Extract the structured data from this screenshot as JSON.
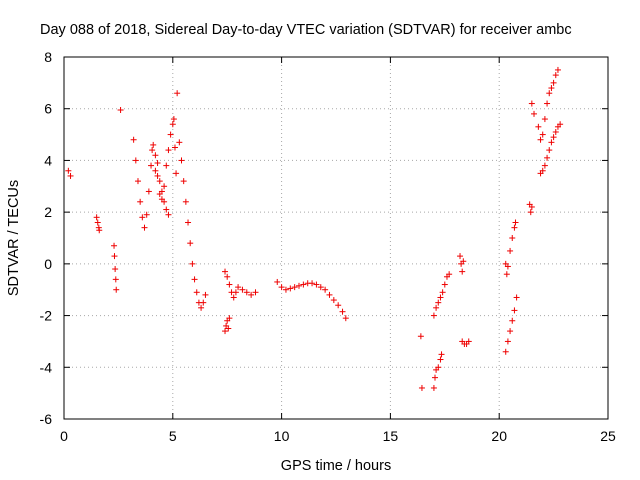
{
  "chart_data": {
    "type": "scatter",
    "title": "Day 088 of 2018, Sidereal Day-to-day VTEC variation (SDTVAR) for receiver ambc",
    "xlabel": "GPS time / hours",
    "ylabel": "SDTVAR / TECUs",
    "xlim": [
      0,
      25
    ],
    "ylim": [
      -6,
      8
    ],
    "xticks": [
      0,
      5,
      10,
      15,
      20,
      25
    ],
    "yticks": [
      -6,
      -4,
      -2,
      0,
      2,
      4,
      6,
      8
    ],
    "xtick_labels": [
      "0",
      "5",
      "10",
      "15",
      "20",
      "25"
    ],
    "ytick_labels": [
      "-6",
      "-4",
      "-2",
      "0",
      "2",
      "4",
      "6",
      "8"
    ],
    "grid": true,
    "marker": "+",
    "color": "#ee0000",
    "segments": [
      {
        "name": "seg1",
        "x": [
          0.2,
          0.3
        ],
        "y": [
          3.6,
          3.4
        ]
      },
      {
        "name": "seg2",
        "x": [
          1.5,
          1.55,
          1.6,
          1.62
        ],
        "y": [
          1.8,
          1.6,
          1.4,
          1.3
        ]
      },
      {
        "name": "seg3",
        "x": [
          2.3,
          2.32,
          2.35,
          2.38,
          2.4
        ],
        "y": [
          0.7,
          0.3,
          -0.2,
          -0.6,
          -1.0
        ]
      },
      {
        "name": "seg4",
        "x": [
          2.6
        ],
        "y": [
          5.95
        ]
      },
      {
        "name": "seg5",
        "x": [
          3.2,
          3.3,
          3.4,
          3.5,
          3.6,
          3.7,
          3.8,
          3.9,
          4.0,
          4.05,
          4.1,
          4.2,
          4.3,
          4.4,
          4.5,
          4.6,
          4.7,
          4.8,
          4.9,
          5.0,
          5.05,
          5.1,
          5.15,
          5.2,
          5.3,
          5.4,
          5.5,
          5.6,
          5.7,
          5.8,
          5.9,
          6.0,
          6.1,
          6.2,
          6.3,
          6.4,
          6.5
        ],
        "y": [
          4.8,
          4.0,
          3.2,
          2.4,
          1.8,
          1.4,
          1.9,
          2.8,
          3.8,
          4.4,
          4.6,
          4.2,
          3.4,
          2.7,
          2.5,
          3.0,
          3.8,
          4.4,
          5.0,
          5.4,
          5.6,
          4.5,
          3.5,
          6.6,
          4.7,
          4.0,
          3.2,
          2.4,
          1.6,
          0.8,
          0.0,
          -0.6,
          -1.1,
          -1.5,
          -1.7,
          -1.5,
          -1.2
        ]
      },
      {
        "name": "seg5b",
        "x": [
          4.2,
          4.3,
          4.4,
          4.5,
          4.6,
          4.7,
          4.8
        ],
        "y": [
          3.6,
          3.9,
          3.2,
          2.8,
          2.4,
          2.1,
          1.9
        ]
      },
      {
        "name": "seg6",
        "x": [
          7.4,
          7.45,
          7.5,
          7.55,
          7.6
        ],
        "y": [
          -2.6,
          -2.4,
          -2.2,
          -2.5,
          -2.1
        ]
      },
      {
        "name": "seg7",
        "x": [
          7.4,
          7.5,
          7.6,
          7.7,
          7.8,
          7.9,
          8.0,
          8.2,
          8.4,
          8.6,
          8.8
        ],
        "y": [
          -0.3,
          -0.5,
          -0.8,
          -1.1,
          -1.3,
          -1.1,
          -0.9,
          -1.0,
          -1.1,
          -1.2,
          -1.1
        ]
      },
      {
        "name": "seg8",
        "x": [
          9.8,
          10.0,
          10.2,
          10.4,
          10.6,
          10.8,
          11.0,
          11.2,
          11.4,
          11.6,
          11.8,
          12.0,
          12.2,
          12.4,
          12.6,
          12.8,
          12.95
        ],
        "y": [
          -0.7,
          -0.9,
          -1.0,
          -0.95,
          -0.9,
          -0.85,
          -0.8,
          -0.75,
          -0.75,
          -0.8,
          -0.9,
          -1.0,
          -1.2,
          -1.4,
          -1.6,
          -1.85,
          -2.1
        ]
      },
      {
        "name": "seg9",
        "x": [
          16.4,
          16.45
        ],
        "y": [
          -2.8,
          -4.8
        ]
      },
      {
        "name": "seg10",
        "x": [
          17.0,
          17.1,
          17.2,
          17.3,
          17.4,
          17.5,
          17.6,
          17.7
        ],
        "y": [
          -2.0,
          -1.7,
          -1.5,
          -1.3,
          -1.1,
          -0.8,
          -0.5,
          -0.4
        ]
      },
      {
        "name": "seg11",
        "x": [
          17.0,
          17.05,
          17.1,
          17.2,
          17.3,
          17.35
        ],
        "y": [
          -4.8,
          -4.4,
          -4.1,
          -4.0,
          -3.7,
          -3.5
        ]
      },
      {
        "name": "seg12",
        "x": [
          18.2,
          18.25,
          18.3,
          18.35
        ],
        "y": [
          0.3,
          0.0,
          -0.3,
          0.1
        ]
      },
      {
        "name": "seg13",
        "x": [
          18.3,
          18.4,
          18.5,
          18.6
        ],
        "y": [
          -3.0,
          -3.1,
          -3.1,
          -3.0
        ]
      },
      {
        "name": "seg14",
        "x": [
          20.3,
          20.35,
          20.4,
          20.5,
          20.6,
          20.7,
          20.75
        ],
        "y": [
          0.0,
          -0.4,
          -0.1,
          0.5,
          1.0,
          1.4,
          1.6
        ]
      },
      {
        "name": "seg15",
        "x": [
          20.3,
          20.4,
          20.5,
          20.6,
          20.7,
          20.8
        ],
        "y": [
          -3.4,
          -3.0,
          -2.6,
          -2.2,
          -1.8,
          -1.3
        ]
      },
      {
        "name": "seg16",
        "x": [
          21.4,
          21.45,
          21.5
        ],
        "y": [
          2.3,
          2.0,
          2.2
        ]
      },
      {
        "name": "seg17",
        "x": [
          21.5,
          21.6,
          21.8,
          21.9,
          22.0,
          22.1,
          22.2,
          22.3,
          22.4,
          22.5,
          22.6,
          22.7
        ],
        "y": [
          6.2,
          5.8,
          5.3,
          4.8,
          5.0,
          5.6,
          6.2,
          6.6,
          6.8,
          7.0,
          7.3,
          7.5
        ]
      },
      {
        "name": "seg18",
        "x": [
          21.9,
          22.0,
          22.1,
          22.2,
          22.3,
          22.4,
          22.5,
          22.6,
          22.7,
          22.8
        ],
        "y": [
          3.5,
          3.6,
          3.8,
          4.1,
          4.4,
          4.7,
          4.9,
          5.1,
          5.3,
          5.4
        ]
      }
    ]
  }
}
